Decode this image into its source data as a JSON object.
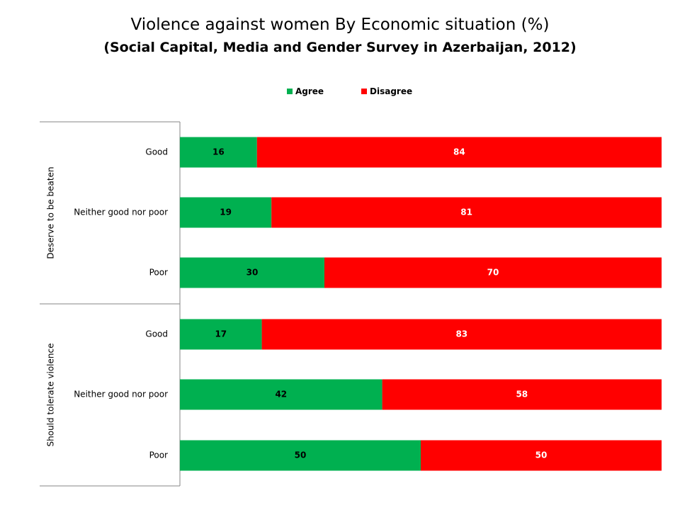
{
  "chart_data": {
    "type": "bar",
    "stacked": true,
    "orientation": "horizontal",
    "title": "Violence against women By Economic situation (%)",
    "subtitle": "(Social Capital, Media and Gender Survey in Azerbaijan, 2012)",
    "groups": [
      {
        "label": "Deserve to be beaten",
        "categories": [
          "Good",
          "Neither good nor poor",
          "Poor"
        ],
        "agree": [
          16,
          19,
          30
        ],
        "disagree": [
          84,
          81,
          70
        ]
      },
      {
        "label": "Should tolerate violence",
        "categories": [
          "Good",
          "Neither good nor poor",
          "Poor"
        ],
        "agree": [
          17,
          42,
          50
        ],
        "disagree": [
          83,
          58,
          50
        ]
      }
    ],
    "series": [
      {
        "name": "Agree",
        "color": "#00b050"
      },
      {
        "name": "Disagree",
        "color": "#ff0000"
      }
    ],
    "xlim": [
      0,
      100
    ],
    "legend_position": "top",
    "grid": false
  }
}
